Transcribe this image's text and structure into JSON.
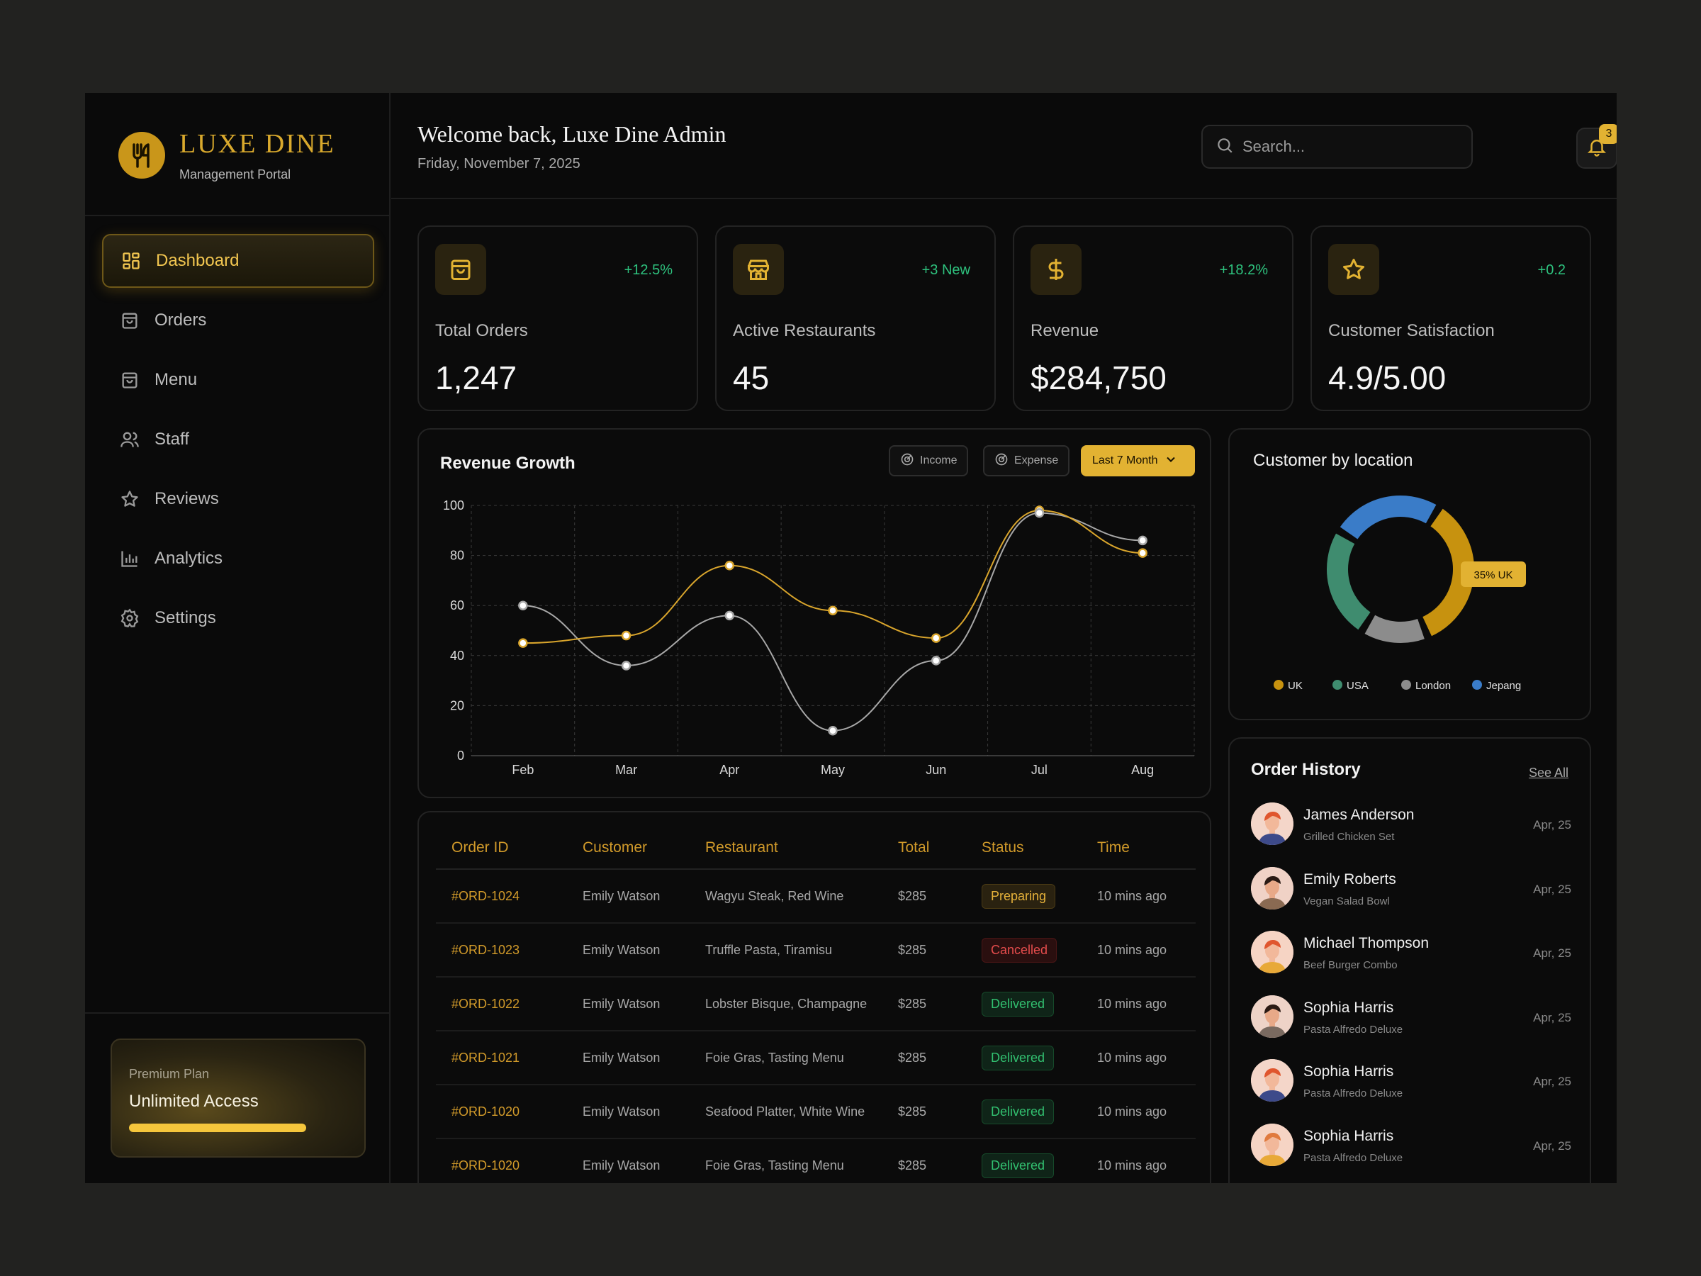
{
  "brand": {
    "name": "LUXE DINE",
    "subtitle": "Management Portal",
    "logo_icon": "fork-knife-icon"
  },
  "nav": [
    {
      "label": "Dashboard",
      "icon": "grid-icon",
      "active": true
    },
    {
      "label": "Orders",
      "icon": "bag-icon"
    },
    {
      "label": "Menu",
      "icon": "bag-icon"
    },
    {
      "label": "Staff",
      "icon": "users-icon"
    },
    {
      "label": "Reviews",
      "icon": "star-icon"
    },
    {
      "label": "Analytics",
      "icon": "bar-chart-icon"
    },
    {
      "label": "Settings",
      "icon": "gear-icon"
    }
  ],
  "plan": {
    "label": "Premium Plan",
    "title": "Unlimited Access"
  },
  "header": {
    "welcome": "Welcome back, Luxe Dine Admin",
    "date": "Friday, November 7, 2025",
    "search_placeholder": "Search...",
    "notification_count": "3"
  },
  "stats": [
    {
      "label": "Total Orders",
      "value": "1,247",
      "change": "+12.5%",
      "icon": "bag-icon"
    },
    {
      "label": "Active Restaurants",
      "value": "45",
      "change": "+3 New",
      "icon": "store-icon"
    },
    {
      "label": "Revenue",
      "value": "$284,750",
      "change": "+18.2%",
      "icon": "dollar-icon"
    },
    {
      "label": "Customer Satisfaction",
      "value": "4.9/5.00",
      "change": "+0.2",
      "icon": "star-icon"
    }
  ],
  "revenue_chart": {
    "title": "Revenue Growth",
    "filters": {
      "income": "Income",
      "expense": "Expense",
      "range": "Last 7 Month"
    }
  },
  "chart_data": [
    {
      "type": "line",
      "title": "Revenue Growth",
      "categories": [
        "Feb",
        "Mar",
        "Apr",
        "May",
        "Jun",
        "Jul",
        "Aug"
      ],
      "ylim": [
        0,
        100
      ],
      "yticks": [
        0,
        20,
        40,
        60,
        80,
        100
      ],
      "grid": true,
      "series": [
        {
          "name": "Income",
          "color": "#d9a52c",
          "values": [
            45,
            48,
            76,
            58,
            47,
            98,
            81
          ]
        },
        {
          "name": "Expense",
          "color": "#a8a8a8",
          "values": [
            60,
            36,
            56,
            10,
            38,
            97,
            86
          ]
        }
      ]
    },
    {
      "type": "pie",
      "title": "Customer by location",
      "categories": [
        "UK",
        "USA",
        "London",
        "Jepang"
      ],
      "values": [
        35,
        25,
        15,
        25
      ],
      "colors": [
        "#c7920f",
        "#3f8c6f",
        "#8c8c8c",
        "#3a7cc8"
      ],
      "annotation": "35% UK",
      "legend": "bottom"
    }
  ],
  "orders": {
    "columns": [
      "Order ID",
      "Customer",
      "Restaurant",
      "Total",
      "Status",
      "Time"
    ],
    "rows": [
      {
        "id": "#ORD-1024",
        "customer": "Emily Watson",
        "restaurant": "Wagyu Steak, Red Wine",
        "total": "$285",
        "status": "Preparing",
        "time": "10 mins ago"
      },
      {
        "id": "#ORD-1023",
        "customer": "Emily Watson",
        "restaurant": "Truffle Pasta, Tiramisu",
        "total": "$285",
        "status": "Cancelled",
        "time": "10 mins ago"
      },
      {
        "id": "#ORD-1022",
        "customer": "Emily Watson",
        "restaurant": "Lobster Bisque, Champagne",
        "total": "$285",
        "status": "Delivered",
        "time": "10 mins ago"
      },
      {
        "id": "#ORD-1021",
        "customer": "Emily Watson",
        "restaurant": "Foie Gras, Tasting Menu",
        "total": "$285",
        "status": "Delivered",
        "time": "10 mins ago"
      },
      {
        "id": "#ORD-1020",
        "customer": "Emily Watson",
        "restaurant": "Seafood Platter, White Wine",
        "total": "$285",
        "status": "Delivered",
        "time": "10 mins ago"
      },
      {
        "id": "#ORD-1020",
        "customer": "Emily Watson",
        "restaurant": "Foie Gras, Tasting Menu",
        "total": "$285",
        "status": "Delivered",
        "time": "10 mins ago"
      }
    ]
  },
  "history": {
    "title": "Order History",
    "see_all": "See All",
    "items": [
      {
        "name": "James Anderson",
        "dish": "Grilled Chicken Set",
        "date": "Apr, 25"
      },
      {
        "name": "Emily Roberts",
        "dish": "Vegan Salad Bowl",
        "date": "Apr, 25"
      },
      {
        "name": "Michael Thompson",
        "dish": "Beef Burger Combo",
        "date": "Apr, 25"
      },
      {
        "name": "Sophia Harris",
        "dish": "Pasta Alfredo Deluxe",
        "date": "Apr, 25"
      },
      {
        "name": "Sophia Harris",
        "dish": "Pasta Alfredo Deluxe",
        "date": "Apr, 25"
      },
      {
        "name": "Sophia Harris",
        "dish": "Pasta Alfredo Deluxe",
        "date": "Apr, 25"
      }
    ]
  }
}
